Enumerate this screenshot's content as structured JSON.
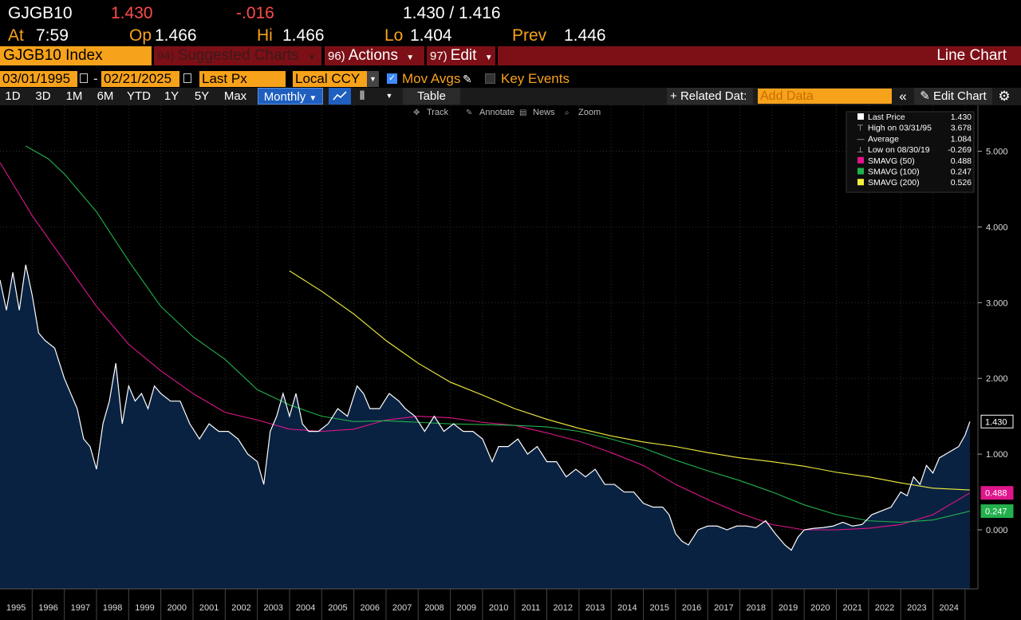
{
  "quote": {
    "ticker": "GJGB10",
    "last": "1.430",
    "change": "-.016",
    "bid_ask": "1.430 / 1.416",
    "at_label": "At",
    "time": "7:59",
    "open_label": "Op",
    "open": "1.466",
    "high_label": "Hi",
    "high": "1.466",
    "low_label": "Lo",
    "low": "1.404",
    "prev_label": "Prev",
    "prev": "1.446"
  },
  "function_bar": {
    "security": "GJGB10 Index",
    "suggested_num": "94)",
    "suggested_label": "Suggested Charts",
    "actions_num": "96)",
    "actions_label": "Actions",
    "edit_num": "97)",
    "edit_label": "Edit",
    "chart_type": "Line Chart"
  },
  "params": {
    "start_date": "03/01/1995",
    "separator": "-",
    "end_date": "02/21/2025",
    "field": "Last Px",
    "currency": "Local CCY",
    "mov_avgs": "Mov Avgs",
    "mov_avgs_checked": true,
    "key_events": "Key Events",
    "key_events_checked": false
  },
  "ranges": {
    "items": [
      "1D",
      "3D",
      "1M",
      "6M",
      "YTD",
      "1Y",
      "5Y",
      "Max"
    ],
    "frequency": "Monthly",
    "table": "Table",
    "related": "Related Dat:",
    "add_data_placeholder": "Add Data",
    "edit_chart": "Edit Chart"
  },
  "tools": {
    "track": "Track",
    "annotate": "Annotate",
    "news": "News",
    "zoom": "Zoom"
  },
  "legend": [
    {
      "label": "Last Price",
      "value": "1.430",
      "color": "#ffffff",
      "marker": "box"
    },
    {
      "label": "High on 03/31/95",
      "value": "3.678",
      "color": "#cccccc",
      "marker": "high"
    },
    {
      "label": "Average",
      "value": "1.084",
      "color": "#cccccc",
      "marker": "avg"
    },
    {
      "label": "Low on 08/30/19",
      "value": "-0.269",
      "color": "#cccccc",
      "marker": "low"
    },
    {
      "label": "SMAVG (50)",
      "value": "0.488",
      "color": "#e0158c",
      "marker": "box"
    },
    {
      "label": "SMAVG (100)",
      "value": "0.247",
      "color": "#22b14c",
      "marker": "box"
    },
    {
      "label": "SMAVG (200)",
      "value": "0.526",
      "color": "#f2ef3f",
      "marker": "box"
    }
  ],
  "chart_data": {
    "type": "line",
    "y_ticks": [
      "5.000",
      "4.000",
      "3.000",
      "2.000",
      "1.000",
      "0.000"
    ],
    "ylim": [
      -0.75,
      5.6
    ],
    "x_years": [
      "1995",
      "1996",
      "1997",
      "1998",
      "1999",
      "2000",
      "2001",
      "2002",
      "2003",
      "2004",
      "2005",
      "2006",
      "2007",
      "2008",
      "2009",
      "2010",
      "2011",
      "2012",
      "2013",
      "2014",
      "2015",
      "2016",
      "2017",
      "2018",
      "2019",
      "2020",
      "2021",
      "2022",
      "2023",
      "2024"
    ],
    "xlim": [
      1995.0,
      2025.4
    ],
    "end_labels": [
      {
        "text": "1.430",
        "value": 1.43,
        "bg": "#000000",
        "fg": "#ffffff",
        "border": "#ffffff"
      },
      {
        "text": "0.488",
        "value": 0.488,
        "bg": "#e0158c",
        "fg": "#ffffff",
        "border": "#e0158c"
      },
      {
        "text": "0.247",
        "value": 0.247,
        "bg": "#22b14c",
        "fg": "#ffffff",
        "border": "#22b14c"
      }
    ],
    "colors": {
      "price_line": "#ffffff",
      "area": "#0a2241",
      "sma50": "#e0158c",
      "sma100": "#22b14c",
      "sma200": "#f2ef3f"
    },
    "series": [
      {
        "name": "Last Price",
        "x": [
          1995.0,
          1995.2,
          1995.4,
          1995.6,
          1995.8,
          1996.0,
          1996.2,
          1996.4,
          1996.7,
          1997.0,
          1997.2,
          1997.4,
          1997.6,
          1997.8,
          1998.0,
          1998.2,
          1998.4,
          1998.6,
          1998.8,
          1999.0,
          1999.2,
          1999.4,
          1999.6,
          1999.8,
          2000.0,
          2000.3,
          2000.6,
          2000.9,
          2001.2,
          2001.5,
          2001.8,
          2002.1,
          2002.4,
          2002.7,
          2003.0,
          2003.2,
          2003.4,
          2003.6,
          2003.8,
          2004.0,
          2004.2,
          2004.4,
          2004.6,
          2004.9,
          2005.2,
          2005.5,
          2005.8,
          2006.1,
          2006.3,
          2006.5,
          2006.8,
          2007.1,
          2007.4,
          2007.6,
          2007.9,
          2008.2,
          2008.5,
          2008.8,
          2009.1,
          2009.4,
          2009.7,
          2010.0,
          2010.3,
          2010.5,
          2010.8,
          2011.1,
          2011.4,
          2011.7,
          2012.0,
          2012.3,
          2012.6,
          2012.9,
          2013.2,
          2013.5,
          2013.8,
          2014.1,
          2014.4,
          2014.7,
          2015.0,
          2015.3,
          2015.6,
          2015.8,
          2016.0,
          2016.2,
          2016.4,
          2016.7,
          2017.0,
          2017.3,
          2017.6,
          2017.9,
          2018.2,
          2018.5,
          2018.8,
          2019.1,
          2019.4,
          2019.6,
          2019.8,
          2020.0,
          2020.3,
          2020.6,
          2020.9,
          2021.2,
          2021.5,
          2021.8,
          2022.1,
          2022.4,
          2022.7,
          2023.0,
          2023.2,
          2023.4,
          2023.6,
          2023.8,
          2024.0,
          2024.2,
          2024.4,
          2024.6,
          2024.8,
          2025.0,
          2025.15
        ],
        "values": [
          3.3,
          2.9,
          3.4,
          2.9,
          3.5,
          3.1,
          2.6,
          2.5,
          2.4,
          2.0,
          1.8,
          1.6,
          1.2,
          1.1,
          0.8,
          1.4,
          1.7,
          2.2,
          1.4,
          1.9,
          1.7,
          1.8,
          1.6,
          1.9,
          1.8,
          1.7,
          1.7,
          1.4,
          1.2,
          1.4,
          1.3,
          1.3,
          1.2,
          1.0,
          0.9,
          0.6,
          1.3,
          1.5,
          1.8,
          1.5,
          1.8,
          1.4,
          1.3,
          1.3,
          1.4,
          1.6,
          1.5,
          1.9,
          1.8,
          1.6,
          1.6,
          1.8,
          1.7,
          1.6,
          1.5,
          1.3,
          1.5,
          1.3,
          1.4,
          1.3,
          1.3,
          1.2,
          0.9,
          1.1,
          1.1,
          1.2,
          1.0,
          1.1,
          0.9,
          0.9,
          0.7,
          0.8,
          0.7,
          0.8,
          0.6,
          0.6,
          0.5,
          0.5,
          0.35,
          0.3,
          0.3,
          0.2,
          -0.05,
          -0.15,
          -0.2,
          0.0,
          0.05,
          0.05,
          0.0,
          0.05,
          0.05,
          0.03,
          0.12,
          -0.05,
          -0.2,
          -0.269,
          -0.1,
          0.0,
          0.02,
          0.03,
          0.05,
          0.1,
          0.05,
          0.07,
          0.2,
          0.25,
          0.3,
          0.5,
          0.45,
          0.7,
          0.6,
          0.85,
          0.75,
          0.95,
          1.0,
          1.05,
          1.1,
          1.25,
          1.43
        ]
      },
      {
        "name": "SMAVG (50)",
        "x": [
          1995.0,
          1996.0,
          1997.0,
          1998.0,
          1999.0,
          2000.0,
          2001.0,
          2002.0,
          2003.0,
          2004.0,
          2005.0,
          2006.0,
          2007.0,
          2008.0,
          2009.0,
          2010.0,
          2011.0,
          2012.0,
          2013.0,
          2014.0,
          2015.0,
          2016.0,
          2017.0,
          2018.0,
          2019.0,
          2020.0,
          2021.0,
          2022.0,
          2023.0,
          2024.0,
          2025.15
        ],
        "values": [
          4.85,
          4.15,
          3.55,
          2.95,
          2.45,
          2.1,
          1.8,
          1.55,
          1.45,
          1.33,
          1.3,
          1.33,
          1.45,
          1.5,
          1.48,
          1.42,
          1.38,
          1.28,
          1.17,
          1.02,
          0.85,
          0.6,
          0.4,
          0.22,
          0.07,
          0.0,
          0.0,
          0.02,
          0.07,
          0.2,
          0.488
        ]
      },
      {
        "name": "SMAVG (100)",
        "x": [
          1995.8,
          1996.5,
          1997.0,
          1998.0,
          1999.0,
          2000.0,
          2001.0,
          2002.0,
          2003.0,
          2004.0,
          2005.0,
          2006.0,
          2007.0,
          2008.0,
          2009.0,
          2010.0,
          2011.0,
          2012.0,
          2013.0,
          2014.0,
          2015.0,
          2016.0,
          2017.0,
          2018.0,
          2019.0,
          2020.0,
          2021.0,
          2022.0,
          2023.0,
          2024.0,
          2025.15
        ],
        "values": [
          5.07,
          4.9,
          4.7,
          4.2,
          3.55,
          2.95,
          2.55,
          2.25,
          1.85,
          1.65,
          1.5,
          1.43,
          1.44,
          1.42,
          1.4,
          1.39,
          1.38,
          1.36,
          1.3,
          1.2,
          1.08,
          0.92,
          0.78,
          0.65,
          0.5,
          0.33,
          0.2,
          0.12,
          0.1,
          0.13,
          0.247
        ]
      },
      {
        "name": "SMAVG (200)",
        "x": [
          2004.0,
          2005.0,
          2006.0,
          2007.0,
          2008.0,
          2009.0,
          2010.0,
          2011.0,
          2012.0,
          2013.0,
          2014.0,
          2015.0,
          2016.0,
          2017.0,
          2018.0,
          2019.0,
          2020.0,
          2021.0,
          2022.0,
          2023.0,
          2024.0,
          2025.15
        ],
        "values": [
          3.42,
          3.15,
          2.85,
          2.5,
          2.2,
          1.95,
          1.78,
          1.6,
          1.46,
          1.34,
          1.24,
          1.16,
          1.1,
          1.02,
          0.95,
          0.9,
          0.84,
          0.76,
          0.7,
          0.62,
          0.55,
          0.526
        ]
      }
    ]
  }
}
